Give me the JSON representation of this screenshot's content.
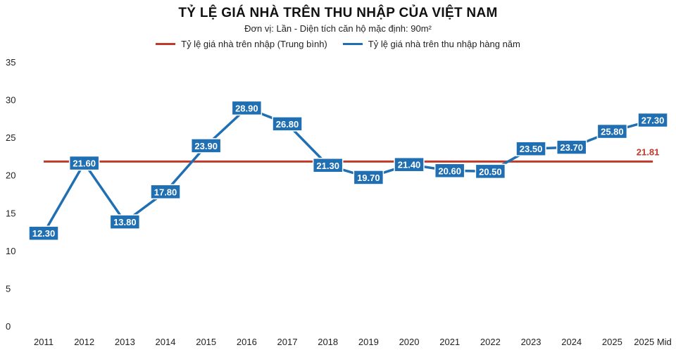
{
  "chart_data": {
    "type": "line",
    "title": "TỶ LỆ GIÁ NHÀ TRÊN THU NHẬP CỦA VIỆT NAM",
    "subtitle": "Đơn vị: Lần - Diện tích căn hộ mặc định: 90m²",
    "categories": [
      "2011",
      "2012",
      "2013",
      "2014",
      "2015",
      "2016",
      "2017",
      "2018",
      "2019",
      "2020",
      "2021",
      "2022",
      "2023",
      "2024",
      "2025",
      "2025 Mid"
    ],
    "series": [
      {
        "name": "Tỷ lệ giá nhà trên nhập (Trung bình)",
        "color": "#c0392b",
        "values": [
          21.81,
          21.81,
          21.81,
          21.81,
          21.81,
          21.81,
          21.81,
          21.81,
          21.81,
          21.81,
          21.81,
          21.81,
          21.81,
          21.81,
          21.81,
          21.81
        ],
        "end_label": "21.81"
      },
      {
        "name": "Tỷ lệ giá nhà trên thu nhập hàng năm",
        "color": "#1f6fb2",
        "values": [
          12.3,
          21.6,
          13.8,
          17.8,
          23.9,
          28.9,
          26.8,
          21.3,
          19.7,
          21.4,
          20.6,
          20.5,
          23.5,
          23.7,
          25.8,
          27.3
        ],
        "labels": [
          "12.30",
          "21.60",
          "13.80",
          "17.80",
          "23.90",
          "28.90",
          "26.80",
          "21.30",
          "19.70",
          "21.40",
          "20.60",
          "20.50",
          "23.50",
          "23.70",
          "25.80",
          "27.30"
        ]
      }
    ],
    "yticks": [
      "0",
      "5",
      "10",
      "15",
      "20",
      "25",
      "30",
      "35"
    ],
    "ylim": [
      0,
      35
    ],
    "grid": false,
    "legend": "top-center"
  }
}
